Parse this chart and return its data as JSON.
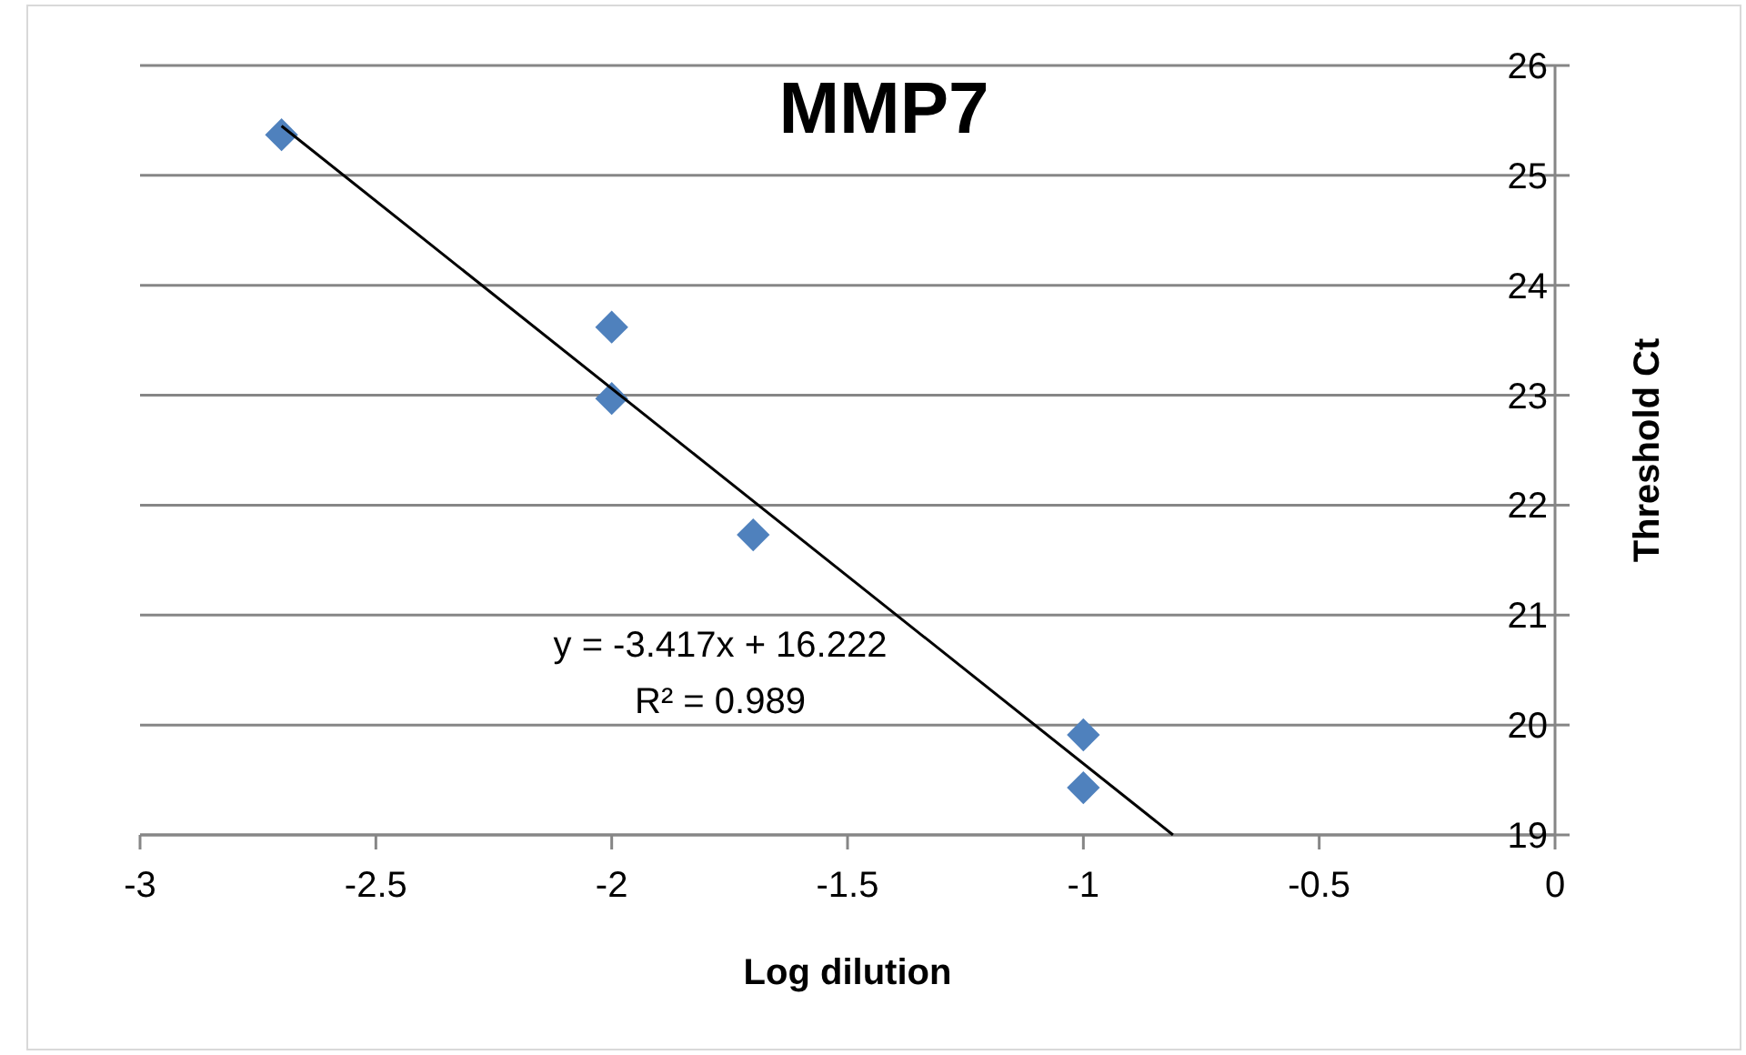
{
  "chart_data": {
    "type": "scatter",
    "title": "MMP7",
    "xlabel": "Log dilution",
    "ylabel": "Threshold Ct",
    "xlim": [
      -3,
      0
    ],
    "xticks": [
      -3,
      -2.5,
      -2,
      -1.5,
      -1,
      -0.5,
      0
    ],
    "ylim": [
      19,
      26
    ],
    "yticks": [
      19,
      20,
      21,
      22,
      23,
      24,
      25,
      26
    ],
    "grid": "y",
    "marker": "diamond",
    "series": [
      {
        "color": "#4f81bd",
        "x": [
          -2.7,
          -2,
          -2,
          -1.7,
          -1,
          -1
        ],
        "values": [
          25.37,
          23.62,
          22.97,
          21.73,
          19.91,
          19.43
        ]
      },
      {
        "type": "line",
        "marker": "none",
        "color": "#000000",
        "x": [
          -2.7,
          -0.81
        ],
        "values": [
          25.45,
          19.0
        ]
      }
    ],
    "annotations": [
      "y = -3.417x + 16.222",
      "R² = 0.989"
    ]
  }
}
